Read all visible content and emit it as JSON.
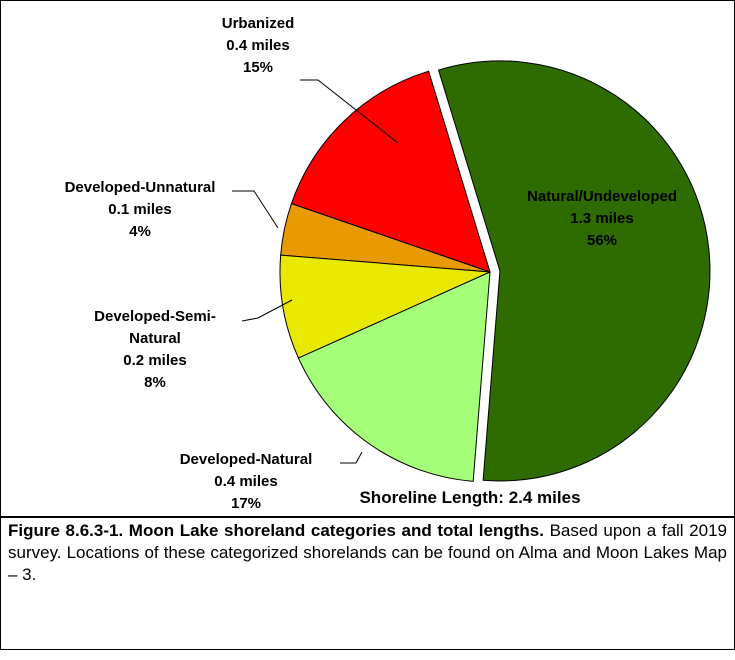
{
  "chart_data": {
    "type": "pie",
    "categories": [
      "Natural/Undeveloped",
      "Developed-Natural",
      "Developed-Semi-Natural",
      "Developed-Unnatural",
      "Urbanized"
    ],
    "values": [
      56,
      17,
      8,
      4,
      15
    ],
    "value_labels": [
      "56%",
      "17%",
      "8%",
      "4%",
      "15%"
    ],
    "length_labels": [
      "1.3 miles",
      "0.4 miles",
      "0.2 miles",
      "0.1 miles",
      "0.4 miles"
    ],
    "colors": [
      "#2e6b00",
      "#a6ff78",
      "#e8e800",
      "#e89a00",
      "#ff0000"
    ],
    "annotation": "Shoreline Length: 2.4 miles"
  },
  "caption": {
    "title": "Figure 8.6.3-1.  Moon Lake shoreland categories and total lengths.",
    "text": "Based upon a fall 2019 survey.  Locations of these categorized shorelands can be found on Alma and Moon Lakes Map – 3."
  }
}
